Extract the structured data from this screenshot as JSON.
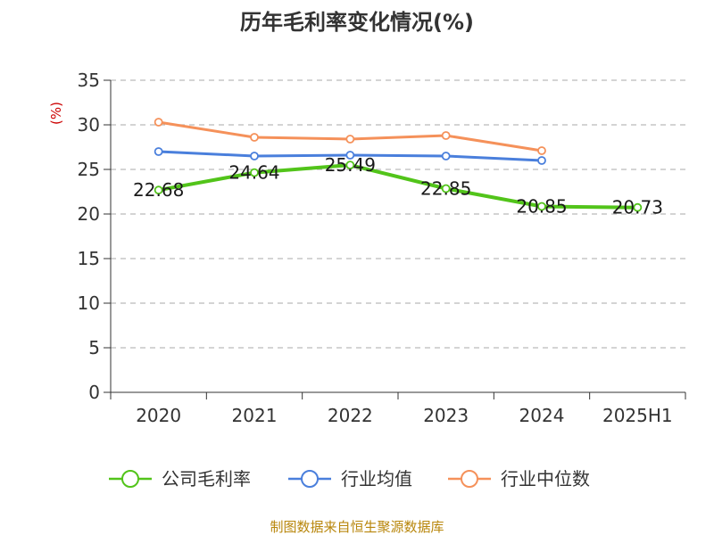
{
  "chart_data": {
    "type": "line",
    "title": "历年毛利率变化情况(%)",
    "ylabel": "(%)",
    "xlabel": "",
    "categories": [
      "2020",
      "2021",
      "2022",
      "2023",
      "2024",
      "2025H1"
    ],
    "ylim": [
      0,
      35
    ],
    "yticks": [
      0,
      5,
      10,
      15,
      20,
      25,
      30,
      35
    ],
    "grid": true,
    "legend_position": "bottom",
    "series": [
      {
        "name": "公司毛利率",
        "color": "#52c41a",
        "values": [
          22.68,
          24.64,
          25.49,
          22.85,
          20.85,
          20.73
        ],
        "labels": [
          "22.68",
          "24.64",
          "25.49",
          "22.85",
          "20.85",
          "20.73"
        ]
      },
      {
        "name": "行业均值",
        "color": "#4a7fdc",
        "values": [
          27.0,
          26.5,
          26.6,
          26.5,
          26.0,
          null
        ]
      },
      {
        "name": "行业中位数",
        "color": "#f5915a",
        "values": [
          30.3,
          28.6,
          28.4,
          28.8,
          27.1,
          null
        ]
      }
    ]
  },
  "source_text": "制图数据来自恒生聚源数据库"
}
